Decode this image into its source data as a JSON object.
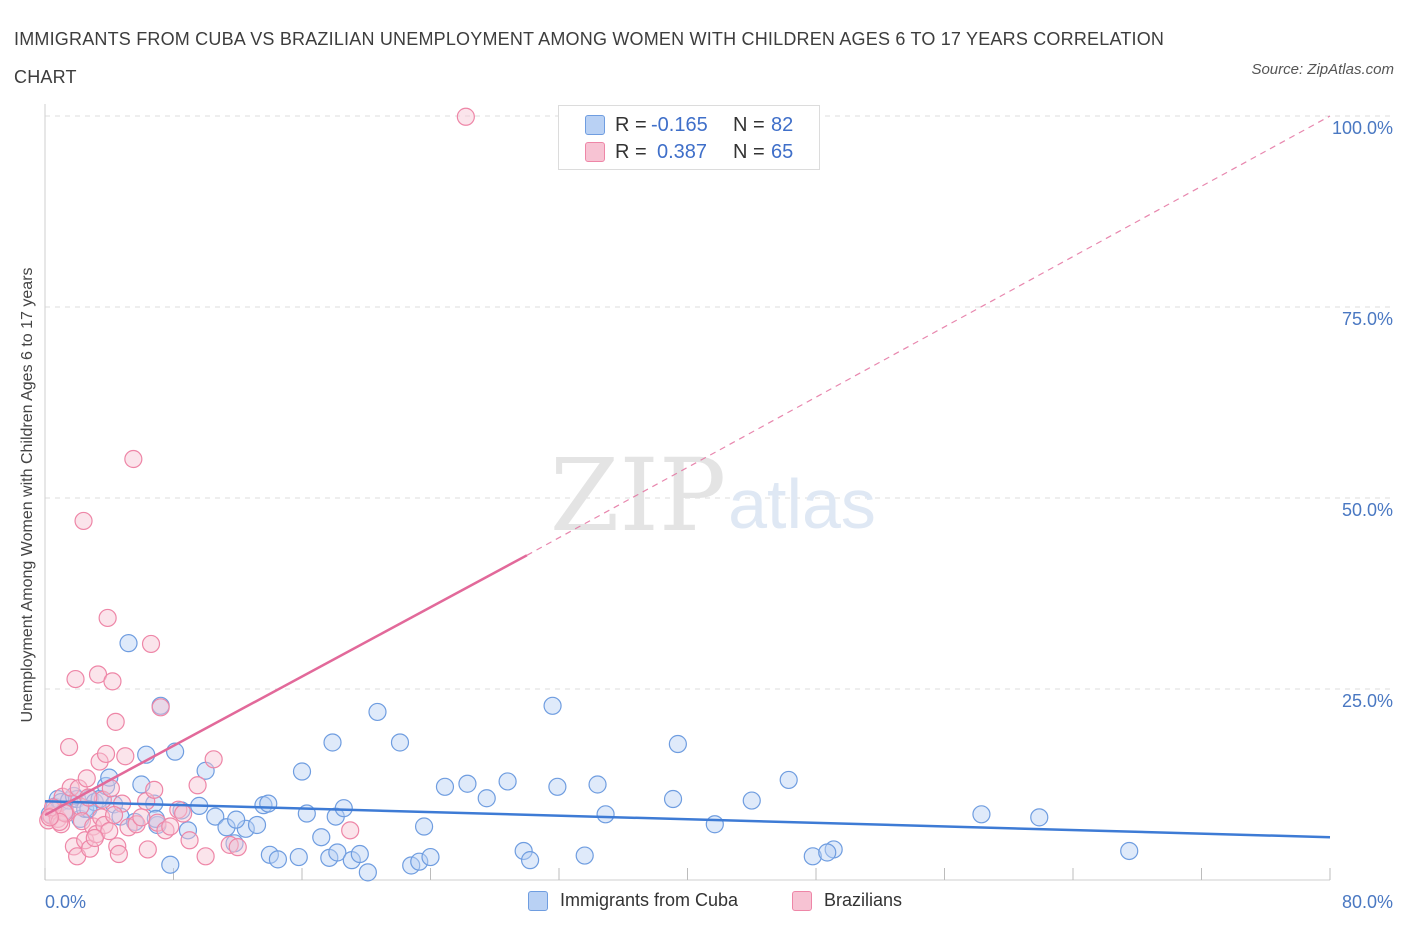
{
  "title": "IMMIGRANTS FROM CUBA VS BRAZILIAN UNEMPLOYMENT AMONG WOMEN WITH CHILDREN AGES 6 TO 17 YEARS CORRELATION CHART",
  "source": "Source: ZipAtlas.com",
  "watermark": {
    "zip": "ZIP",
    "atlas": "atlas"
  },
  "colors": {
    "cuba": "#6f9de0",
    "cuba_fill": "#b9d1f4",
    "brazil": "#ee86a7",
    "brazil_fill": "#f7c3d3",
    "cuba_line": "#3e7bd5",
    "brazil_line": "#e2699a",
    "tick": "#4a78c2",
    "grid": "#dedede"
  },
  "legend_top": [
    {
      "r_label": "R =",
      "r_value": "-0.165",
      "n_label": "N =",
      "n_value": "82"
    },
    {
      "r_label": "R =",
      "r_value": "0.387",
      "n_label": "N =",
      "n_value": "65"
    }
  ],
  "legend_bottom": [
    "Immigrants from Cuba",
    "Brazilians"
  ],
  "chart_data": {
    "type": "scatter",
    "title": "IMMIGRANTS FROM CUBA VS BRAZILIAN UNEMPLOYMENT AMONG WOMEN WITH CHILDREN AGES 6 TO 17 YEARS CORRELATION CHART",
    "xlabel": "",
    "ylabel": "Unemployment Among Women with Children Ages 6 to 17 years",
    "xlim": [
      0,
      80
    ],
    "ylim": [
      0,
      100
    ],
    "x_ticks": [
      {
        "value": 0,
        "label": "0.0%"
      },
      {
        "value": 80,
        "label": "80.0%"
      }
    ],
    "y_ticks": [
      {
        "value": 25,
        "label": "25.0%"
      },
      {
        "value": 50,
        "label": "50.0%"
      },
      {
        "value": 75,
        "label": "75.0%"
      },
      {
        "value": 100,
        "label": "100.0%"
      }
    ],
    "grid": true,
    "legend_position": "top-center",
    "series": [
      {
        "name": "Immigrants from Cuba",
        "r": -0.165,
        "n": 82,
        "trend": {
          "x": [
            0,
            80
          ],
          "y": [
            10.3,
            5.6
          ],
          "style": "solid"
        },
        "points": [
          [
            0.3,
            8.6
          ],
          [
            0.6,
            9.6
          ],
          [
            0.8,
            10.6
          ],
          [
            1.0,
            10.2
          ],
          [
            1.2,
            9.0
          ],
          [
            1.5,
            10.4
          ],
          [
            1.8,
            11.0
          ],
          [
            2.0,
            10.6
          ],
          [
            2.2,
            8.0
          ],
          [
            2.5,
            9.3
          ],
          [
            2.8,
            10.7
          ],
          [
            3.1,
            10.2
          ],
          [
            3.4,
            10.6
          ],
          [
            3.8,
            12.3
          ],
          [
            4.0,
            13.4
          ],
          [
            4.3,
            9.9
          ],
          [
            4.7,
            8.3
          ],
          [
            5.2,
            31.0
          ],
          [
            5.6,
            7.6
          ],
          [
            6.0,
            12.5
          ],
          [
            6.3,
            16.4
          ],
          [
            6.8,
            10.0
          ],
          [
            7.0,
            7.2
          ],
          [
            7.2,
            22.8
          ],
          [
            7.8,
            2.0
          ],
          [
            8.1,
            16.8
          ],
          [
            8.5,
            9.1
          ],
          [
            8.9,
            6.5
          ],
          [
            9.6,
            9.7
          ],
          [
            10.0,
            14.3
          ],
          [
            10.6,
            8.3
          ],
          [
            11.3,
            6.9
          ],
          [
            11.8,
            4.8
          ],
          [
            12.5,
            6.7
          ],
          [
            13.2,
            7.2
          ],
          [
            13.6,
            9.8
          ],
          [
            14.0,
            3.3
          ],
          [
            14.5,
            2.7
          ],
          [
            15.8,
            3.0
          ],
          [
            16.0,
            14.2
          ],
          [
            16.3,
            8.7
          ],
          [
            17.2,
            5.6
          ],
          [
            17.7,
            2.9
          ],
          [
            17.9,
            18.0
          ],
          [
            18.1,
            8.3
          ],
          [
            18.6,
            9.4
          ],
          [
            18.2,
            3.6
          ],
          [
            19.1,
            2.6
          ],
          [
            19.6,
            3.4
          ],
          [
            20.1,
            1.0
          ],
          [
            20.7,
            22.0
          ],
          [
            22.1,
            18.0
          ],
          [
            22.8,
            1.9
          ],
          [
            23.3,
            2.4
          ],
          [
            23.6,
            7.0
          ],
          [
            24.9,
            12.2
          ],
          [
            26.3,
            12.6
          ],
          [
            27.5,
            10.7
          ],
          [
            28.8,
            12.9
          ],
          [
            29.8,
            3.8
          ],
          [
            30.2,
            2.6
          ],
          [
            31.6,
            22.8
          ],
          [
            31.9,
            12.2
          ],
          [
            33.6,
            3.2
          ],
          [
            34.4,
            12.5
          ],
          [
            34.9,
            8.6
          ],
          [
            39.1,
            10.6
          ],
          [
            39.4,
            17.8
          ],
          [
            41.7,
            7.3
          ],
          [
            44.0,
            10.4
          ],
          [
            46.3,
            13.1
          ],
          [
            47.8,
            3.1
          ],
          [
            49.1,
            4.0
          ],
          [
            48.7,
            3.6
          ],
          [
            58.3,
            8.6
          ],
          [
            61.9,
            8.2
          ],
          [
            67.5,
            3.8
          ],
          [
            6.9,
            8.0
          ],
          [
            11.9,
            7.9
          ],
          [
            2.7,
            9.3
          ],
          [
            24.0,
            3.0
          ],
          [
            13.9,
            10.0
          ]
        ]
      },
      {
        "name": "Brazilians",
        "r": 0.387,
        "n": 65,
        "trend": {
          "x": [
            0,
            30
          ],
          "y": [
            8.5,
            42.5
          ],
          "style": "solid",
          "extended_x": [
            30,
            80
          ],
          "extended_y": [
            42.5,
            100
          ],
          "extended_style": "dashed"
        },
        "points": [
          [
            0.2,
            7.8
          ],
          [
            0.4,
            8.4
          ],
          [
            0.6,
            9.1
          ],
          [
            0.8,
            8.0
          ],
          [
            1.0,
            7.3
          ],
          [
            1.1,
            10.9
          ],
          [
            1.3,
            8.7
          ],
          [
            1.5,
            17.4
          ],
          [
            1.6,
            12.1
          ],
          [
            1.8,
            4.4
          ],
          [
            1.9,
            26.3
          ],
          [
            2.0,
            3.1
          ],
          [
            2.1,
            12.0
          ],
          [
            2.2,
            9.6
          ],
          [
            2.3,
            7.7
          ],
          [
            2.4,
            47.0
          ],
          [
            2.5,
            5.2
          ],
          [
            2.6,
            13.3
          ],
          [
            2.8,
            4.1
          ],
          [
            3.0,
            7.0
          ],
          [
            3.2,
            6.0
          ],
          [
            3.3,
            26.9
          ],
          [
            3.4,
            15.5
          ],
          [
            3.5,
            8.2
          ],
          [
            3.6,
            10.5
          ],
          [
            3.7,
            7.2
          ],
          [
            3.8,
            16.5
          ],
          [
            3.9,
            34.3
          ],
          [
            4.0,
            6.4
          ],
          [
            4.1,
            12.0
          ],
          [
            4.2,
            26.0
          ],
          [
            4.4,
            20.7
          ],
          [
            4.5,
            4.4
          ],
          [
            4.6,
            3.4
          ],
          [
            4.8,
            10.0
          ],
          [
            5.0,
            16.2
          ],
          [
            5.2,
            6.9
          ],
          [
            5.5,
            55.1
          ],
          [
            5.7,
            7.3
          ],
          [
            6.0,
            8.2
          ],
          [
            6.3,
            10.3
          ],
          [
            6.6,
            30.9
          ],
          [
            6.8,
            11.8
          ],
          [
            7.0,
            7.5
          ],
          [
            7.2,
            22.6
          ],
          [
            7.5,
            6.5
          ],
          [
            7.8,
            7.0
          ],
          [
            8.3,
            9.2
          ],
          [
            8.6,
            8.7
          ],
          [
            9.0,
            5.2
          ],
          [
            9.5,
            12.4
          ],
          [
            10.0,
            3.1
          ],
          [
            10.5,
            15.8
          ],
          [
            11.5,
            4.6
          ],
          [
            12.0,
            4.3
          ],
          [
            19.0,
            6.5
          ],
          [
            26.2,
            99.9
          ],
          [
            0.5,
            9.5
          ],
          [
            1.2,
            8.8
          ],
          [
            0.9,
            7.6
          ],
          [
            2.7,
            10.8
          ],
          [
            3.1,
            5.5
          ],
          [
            4.3,
            8.5
          ],
          [
            6.4,
            4.0
          ],
          [
            0.3,
            8.2
          ]
        ]
      }
    ]
  }
}
